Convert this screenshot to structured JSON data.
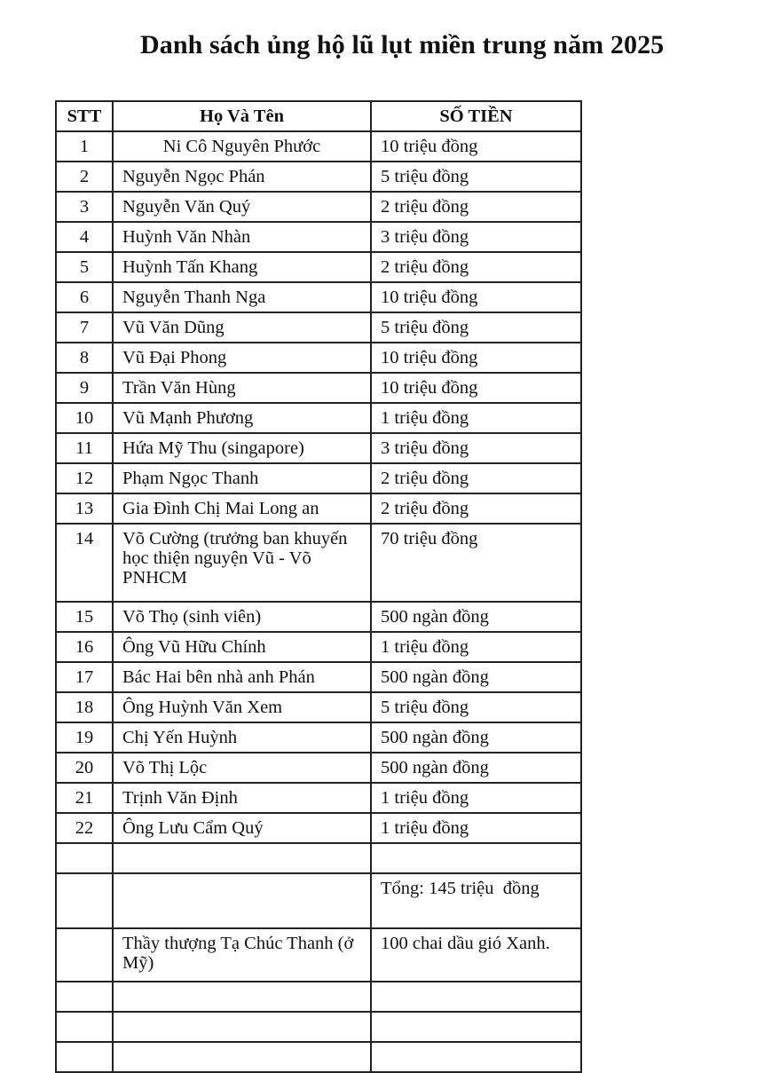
{
  "title": "Danh sách ủng hộ lũ lụt miền trung năm 2025",
  "table": {
    "headers": [
      "STT",
      "Họ Và Tên",
      "SỐ TIỀN"
    ],
    "rows": [
      {
        "stt": "1",
        "name": "Ni Cô Nguyên Phước",
        "amount": "10 triệu đồng"
      },
      {
        "stt": "2",
        "name": "Nguyễn Ngọc Phán",
        "amount": "5 triệu đồng"
      },
      {
        "stt": "3",
        "name": "Nguyễn Văn Quý",
        "amount": "2 triệu đồng"
      },
      {
        "stt": "4",
        "name": "Huỳnh Văn Nhàn",
        "amount": "3 triệu đồng"
      },
      {
        "stt": "5",
        "name": "Huỳnh Tấn Khang",
        "amount": "2 triệu đồng"
      },
      {
        "stt": "6",
        "name": "Nguyễn Thanh Nga",
        "amount": "10 triệu đồng"
      },
      {
        "stt": "7",
        "name": "Vũ Văn Dũng",
        "amount": "5 triệu đồng"
      },
      {
        "stt": "8",
        "name": "Vũ Đại Phong",
        "amount": "10 triệu đồng"
      },
      {
        "stt": "9",
        "name": "Trần Văn Hùng",
        "amount": "10 triệu đồng"
      },
      {
        "stt": "10",
        "name": "Vũ Mạnh Phương",
        "amount": "1 triệu đồng"
      },
      {
        "stt": "11",
        "name": "Hứa Mỹ Thu (singapore)",
        "amount": "3 triệu đồng"
      },
      {
        "stt": "12",
        "name": "Phạm Ngọc Thanh",
        "amount": "2 triệu đồng"
      },
      {
        "stt": "13",
        "name": "Gia Đình Chị Mai Long an",
        "amount": "2 triệu đồng"
      },
      {
        "stt": "14",
        "name": "Võ Cường (trưởng ban khuyến học thiện nguyện Vũ - Võ PNHCM",
        "amount": "70 triệu đồng"
      },
      {
        "stt": "15",
        "name": "Võ Thọ (sinh viên)",
        "amount": "500 ngàn đồng"
      },
      {
        "stt": "16",
        "name": "Ông Vũ Hữu Chính",
        "amount": "1 triệu đồng"
      },
      {
        "stt": "17",
        "name": "Bác Hai bên nhà anh Phán",
        "amount": "500 ngàn đồng"
      },
      {
        "stt": "18",
        "name": "Ông Huỳnh Văn Xem",
        "amount": "5 triệu đồng"
      },
      {
        "stt": "19",
        "name": "Chị Yến Huỳnh",
        "amount": "500 ngàn đồng"
      },
      {
        "stt": "20",
        "name": "Võ Thị Lộc",
        "amount": "500 ngàn đồng"
      },
      {
        "stt": "21",
        "name": "Trịnh Văn Định",
        "amount": "1 triệu đồng"
      },
      {
        "stt": "22",
        "name": "Ông Lưu Cẩm Quý",
        "amount": "1 triệu đồng"
      }
    ],
    "total": "Tổng: 145 triệu  đồng",
    "gift": {
      "name": "Thầy thượng Tạ Chúc Thanh (ở Mỹ)",
      "amount": "100 chai dầu gió Xanh."
    }
  }
}
